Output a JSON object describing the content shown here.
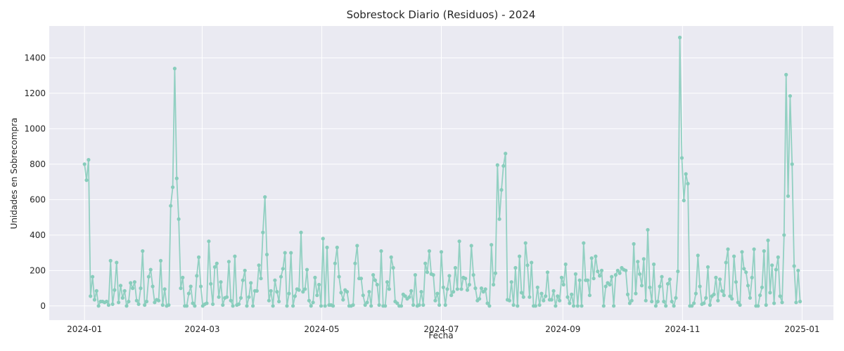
{
  "chart_data": {
    "type": "line",
    "title": "Sobrestock Diario (Residuos) - 2024",
    "xlabel": "Fecha",
    "ylabel": "Unidades en Sobrecompra",
    "x_start": "2024-01-01",
    "x_end": "2024-12-31",
    "xlim": [
      "2023-12-14",
      "2025-01-17"
    ],
    "ylim": [
      -80,
      1580
    ],
    "x_ticks": [
      "2024-01",
      "2024-03",
      "2024-05",
      "2024-07",
      "2024-09",
      "2024-11",
      "2025-01"
    ],
    "x_tick_dates": [
      "2024-01-01",
      "2024-03-01",
      "2024-05-01",
      "2024-07-01",
      "2024-09-01",
      "2024-11-01",
      "2025-01-01"
    ],
    "y_ticks": [
      "0",
      "200",
      "400",
      "600",
      "800",
      "1000",
      "1200",
      "1400"
    ],
    "y_tick_values": [
      0,
      200,
      400,
      600,
      800,
      1000,
      1200,
      1400
    ],
    "grid": true,
    "color": "#88cdbc",
    "background": "#eaeaf2",
    "series": [
      {
        "values": [
          800,
          710,
          825,
          55,
          165,
          35,
          85,
          0,
          25,
          25,
          20,
          25,
          5,
          255,
          10,
          90,
          245,
          20,
          115,
          45,
          85,
          0,
          25,
          130,
          100,
          135,
          30,
          10,
          100,
          310,
          5,
          25,
          165,
          205,
          110,
          20,
          35,
          30,
          255,
          5,
          95,
          0,
          5,
          565,
          670,
          1340,
          720,
          490,
          100,
          160,
          0,
          0,
          70,
          110,
          15,
          0,
          170,
          275,
          110,
          0,
          10,
          15,
          365,
          125,
          10,
          220,
          240,
          50,
          135,
          5,
          45,
          50,
          250,
          30,
          0,
          280,
          5,
          10,
          45,
          145,
          200,
          0,
          50,
          130,
          0,
          85,
          85,
          230,
          155,
          415,
          615,
          290,
          30,
          85,
          0,
          145,
          80,
          25,
          165,
          210,
          300,
          0,
          70,
          300,
          0,
          55,
          95,
          90,
          415,
          80,
          95,
          205,
          30,
          0,
          20,
          160,
          60,
          120,
          0,
          380,
          0,
          330,
          5,
          5,
          0,
          240,
          330,
          165,
          75,
          35,
          90,
          80,
          0,
          0,
          5,
          240,
          340,
          155,
          155,
          60,
          5,
          20,
          80,
          0,
          175,
          145,
          120,
          5,
          310,
          0,
          0,
          135,
          95,
          275,
          215,
          25,
          15,
          0,
          0,
          65,
          55,
          40,
          50,
          85,
          5,
          175,
          0,
          5,
          80,
          5,
          240,
          190,
          310,
          180,
          175,
          30,
          70,
          5,
          305,
          105,
          5,
          95,
          170,
          60,
          80,
          215,
          95,
          365,
          95,
          160,
          155,
          90,
          120,
          340,
          175,
          100,
          30,
          40,
          100,
          80,
          95,
          15,
          0,
          345,
          120,
          185,
          795,
          490,
          655,
          790,
          860,
          35,
          30,
          135,
          5,
          215,
          0,
          280,
          75,
          50,
          355,
          230,
          50,
          245,
          0,
          0,
          105,
          5,
          70,
          30,
          55,
          190,
          35,
          35,
          85,
          0,
          55,
          30,
          160,
          120,
          235,
          50,
          15,
          65,
          0,
          180,
          0,
          145,
          0,
          355,
          145,
          145,
          60,
          270,
          155,
          280,
          195,
          170,
          200,
          0,
          110,
          130,
          120,
          165,
          0,
          175,
          200,
          185,
          215,
          205,
          200,
          65,
          15,
          30,
          350,
          70,
          250,
          180,
          115,
          265,
          30,
          430,
          105,
          25,
          235,
          0,
          25,
          110,
          165,
          25,
          0,
          125,
          150,
          25,
          0,
          45,
          195,
          1515,
          835,
          595,
          745,
          690,
          0,
          0,
          15,
          70,
          285,
          110,
          10,
          15,
          45,
          220,
          5,
          55,
          65,
          160,
          30,
          150,
          85,
          60,
          245,
          320,
          55,
          40,
          280,
          135,
          20,
          5,
          305,
          210,
          190,
          115,
          45,
          160,
          320,
          0,
          0,
          60,
          105,
          310,
          5,
          370,
          75,
          230,
          15,
          205,
          275,
          55,
          20,
          400,
          1305,
          620,
          1185,
          800,
          225,
          20,
          200,
          25
        ]
      }
    ]
  }
}
